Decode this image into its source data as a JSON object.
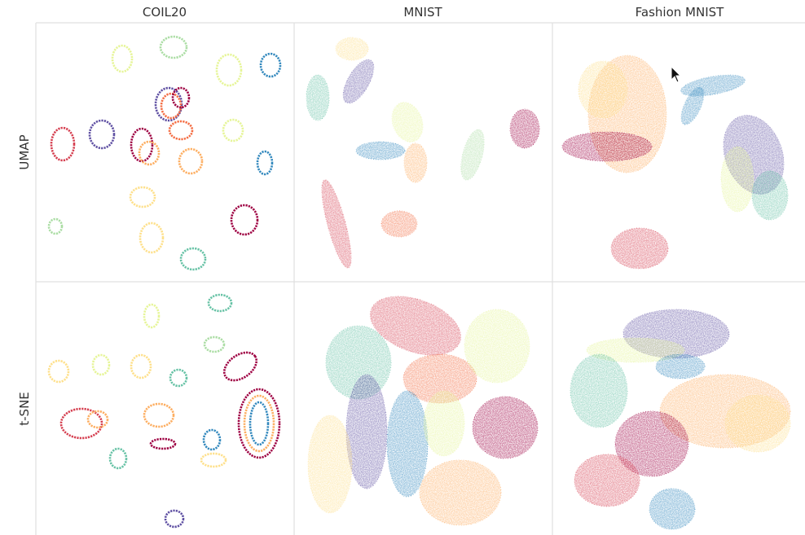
{
  "columns": [
    "COIL20",
    "MNIST",
    "Fashion MNIST"
  ],
  "rows": [
    "UMAP",
    "t-SNE"
  ]
}
